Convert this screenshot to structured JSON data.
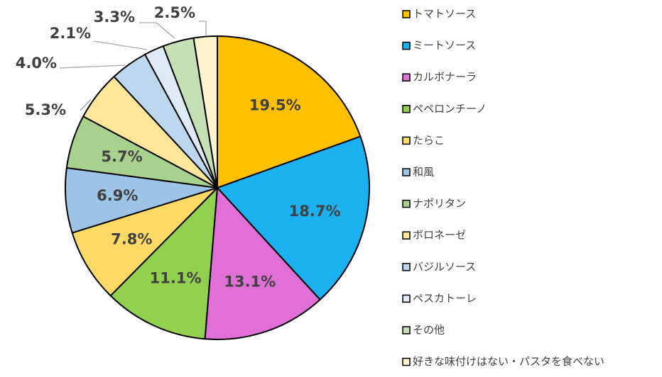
{
  "chart_data": {
    "type": "pie",
    "categories": [
      "トマトソース",
      "ミートソース",
      "カルボナーラ",
      "ペペロンチーノ",
      "たらこ",
      "和風",
      "ナポリタン",
      "ボロネーゼ",
      "バジルソース",
      "ペスカトーレ",
      "その他",
      "好きな味付けはない・パスタを食べない"
    ],
    "slices": [
      {
        "label": "トマトソース",
        "value": 19.5,
        "display": "19.5%",
        "color": "#FFC000"
      },
      {
        "label": "ミートソース",
        "value": 18.7,
        "display": "18.7%",
        "color": "#1BB0F0"
      },
      {
        "label": "カルボナーラ",
        "value": 13.1,
        "display": "13.1%",
        "color": "#E070D6"
      },
      {
        "label": "ペペロンチーノ",
        "value": 11.1,
        "display": "11.1%",
        "color": "#92D050"
      },
      {
        "label": "たらこ",
        "value": 7.8,
        "display": "7.8%",
        "color": "#FFD966"
      },
      {
        "label": "和風",
        "value": 6.9,
        "display": "6.9%",
        "color": "#9DC3E6"
      },
      {
        "label": "ナポリタン",
        "value": 5.7,
        "display": "5.7%",
        "color": "#A9D18E"
      },
      {
        "label": "ボロネーゼ",
        "value": 5.3,
        "display": "5.3%",
        "color": "#FFE699"
      },
      {
        "label": "バジルソース",
        "value": 4.0,
        "display": "4.0%",
        "color": "#BDD7EE"
      },
      {
        "label": "ペスカトーレ",
        "value": 2.1,
        "display": "2.1%",
        "color": "#DEEBF7"
      },
      {
        "label": "その他",
        "value": 3.3,
        "display": "3.3%",
        "color": "#C5E0B4"
      },
      {
        "label": "好きな味付けはない・パスタを食べない",
        "value": 2.5,
        "display": "2.5%",
        "color": "#FFF2CC"
      }
    ],
    "start": "12 o'clock, clockwise",
    "legend": "right"
  }
}
